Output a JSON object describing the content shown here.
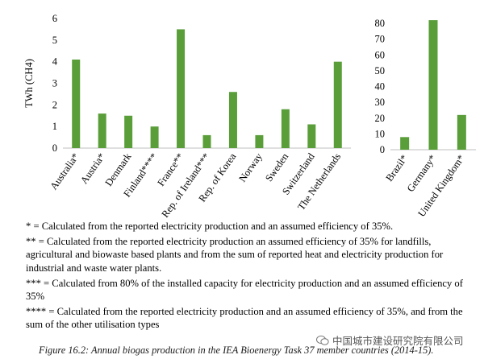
{
  "chart_data": [
    {
      "type": "bar",
      "ylabel": "TWh (CH4)",
      "ylim": [
        0,
        6
      ],
      "yticks": [
        "0",
        "1",
        "2",
        "3",
        "4",
        "5",
        "6"
      ],
      "categories": [
        "Australia*",
        "Austria*",
        "Denmark",
        "Finland****",
        "France**",
        "Rep. of Ireland***",
        "Rep. of Korea",
        "Norway",
        "Sweden",
        "Switzerland",
        "The Netherlands"
      ],
      "values": [
        4.1,
        1.6,
        1.5,
        1.0,
        5.5,
        0.6,
        2.6,
        0.6,
        1.8,
        1.1,
        4.0
      ],
      "bar_color": "#5a9e3a"
    },
    {
      "type": "bar",
      "ylabel": "",
      "ylim": [
        0,
        80
      ],
      "yticks": [
        "0",
        "10",
        "20",
        "30",
        "40",
        "50",
        "60",
        "70",
        "80"
      ],
      "categories": [
        "Brazil*",
        "Germany*",
        "United Kingdom*"
      ],
      "values": [
        8,
        82,
        22
      ],
      "bar_color": "#5a9e3a"
    }
  ],
  "footnotes": [
    "* = Calculated from the reported electricity production and an assumed efficiency of 35%.",
    "** = Calculated from the reported electricity production an assumed efficiency of 35% for landfills, agricultural and biowaste based plants and from the sum of reported heat and electricity production for industrial and waste water plants.",
    "*** = Calculated from 80% of the installed capacity for electricity production and an assumed efficiency of 35%",
    "**** = Calculated from the reported electricity production and an assumed efficiency of 35%, and from the sum of the other utilisation types"
  ],
  "watermark": "中国城市建设研究院有限公司",
  "caption": "Figure 16.2: Annual biogas production in the IEA Bioenergy Task 37 member countries (2014-15)."
}
